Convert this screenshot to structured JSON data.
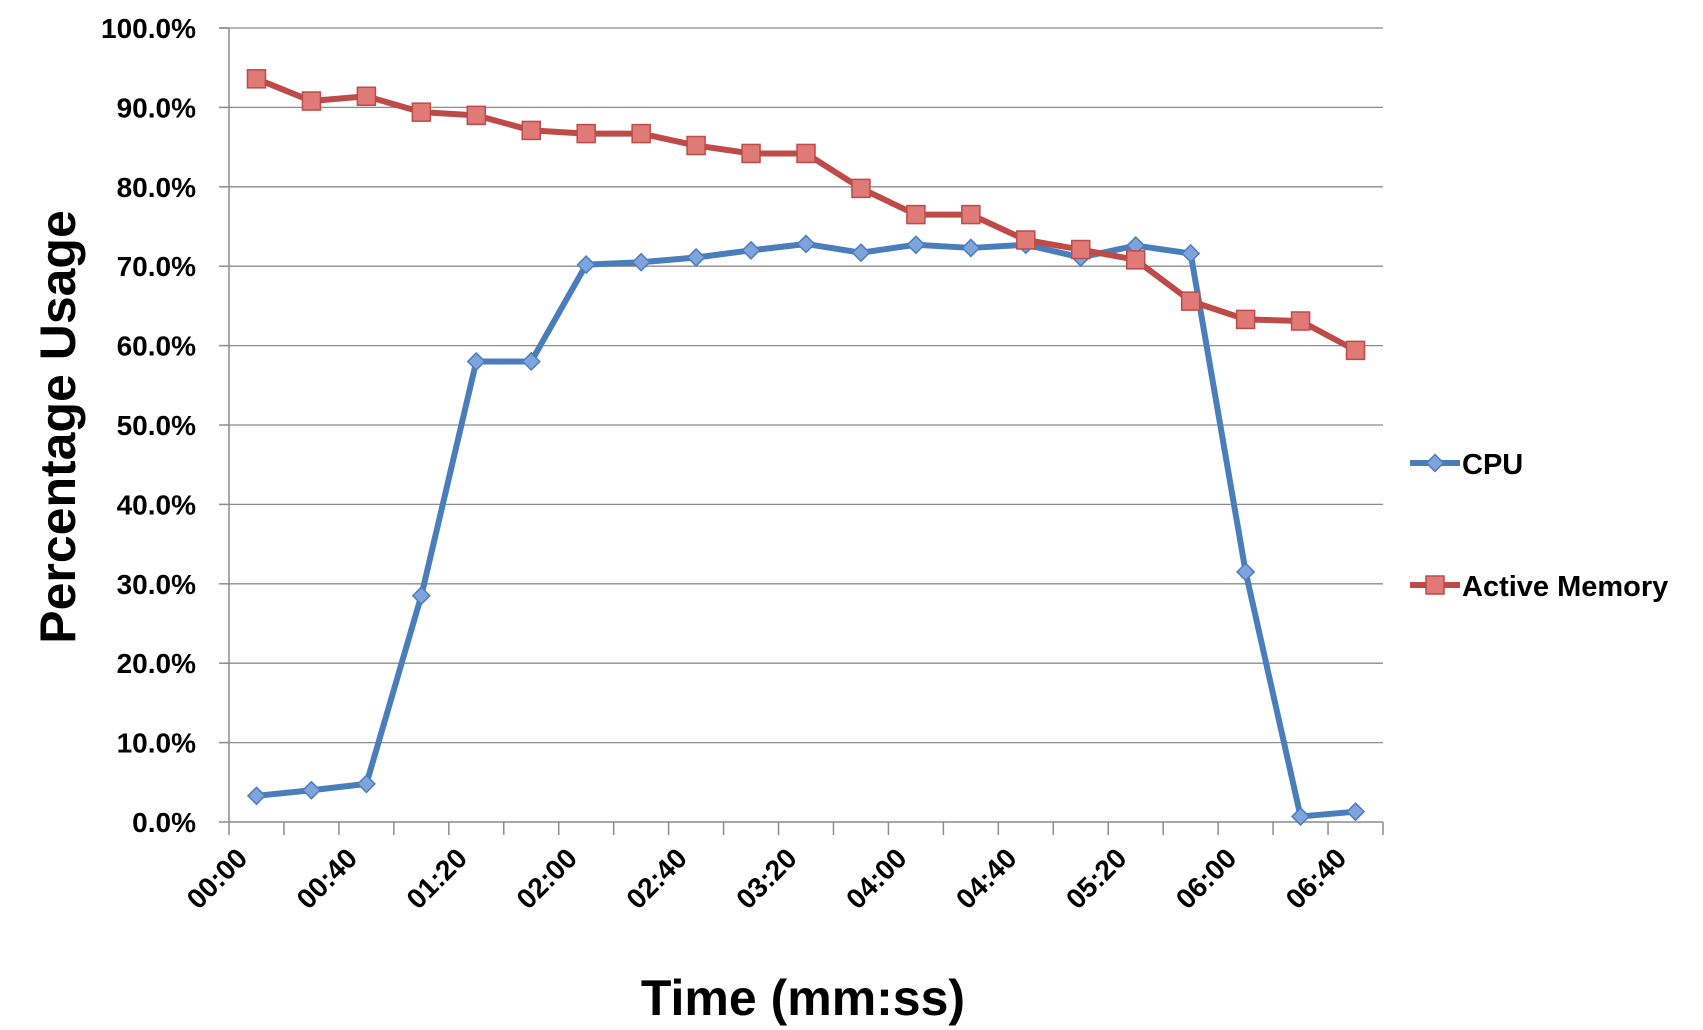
{
  "chart_data": {
    "type": "line",
    "title": "",
    "xlabel": "Time (mm:ss)",
    "ylabel": "Percentage Usage",
    "ylim": [
      0,
      100
    ],
    "ytick_step": 10,
    "ytick_labels": [
      "0.0%",
      "10.0%",
      "20.0%",
      "30.0%",
      "40.0%",
      "50.0%",
      "60.0%",
      "70.0%",
      "80.0%",
      "90.0%",
      "100.0%"
    ],
    "xtick_labels": [
      "00:00",
      "00:40",
      "01:20",
      "02:00",
      "02:40",
      "03:20",
      "04:00",
      "04:40",
      "05:20",
      "06:00",
      "06:40"
    ],
    "x_sample_interval_seconds": 20,
    "grid": true,
    "legend_position": "right",
    "series": [
      {
        "name": "CPU",
        "color": "#4a7ebb",
        "marker": "diamond",
        "x": [
          "00:10",
          "00:30",
          "00:50",
          "01:10",
          "01:30",
          "01:50",
          "02:10",
          "02:30",
          "02:50",
          "03:10",
          "03:30",
          "03:50",
          "04:10",
          "04:30",
          "04:50",
          "05:10",
          "05:30",
          "05:50",
          "06:10",
          "06:30",
          "06:50"
        ],
        "values": [
          3.3,
          4.0,
          4.8,
          28.5,
          58.0,
          58.0,
          70.2,
          70.5,
          71.1,
          72.0,
          72.8,
          71.7,
          72.7,
          72.3,
          72.7,
          71.1,
          72.6,
          71.6,
          31.5,
          0.7,
          1.3
        ]
      },
      {
        "name": "Active Memory",
        "color": "#be4b48",
        "marker": "square",
        "x": [
          "00:10",
          "00:30",
          "00:50",
          "01:10",
          "01:30",
          "01:50",
          "02:10",
          "02:30",
          "02:50",
          "03:10",
          "03:30",
          "03:50",
          "04:10",
          "04:30",
          "04:50",
          "05:10",
          "05:30",
          "05:50",
          "06:10",
          "06:30",
          "06:50"
        ],
        "values": [
          93.6,
          90.8,
          91.4,
          89.4,
          89.0,
          87.1,
          86.7,
          86.7,
          85.2,
          84.2,
          84.2,
          79.8,
          76.5,
          76.5,
          73.3,
          72.1,
          70.8,
          65.6,
          63.3,
          63.1,
          59.4
        ]
      }
    ]
  }
}
